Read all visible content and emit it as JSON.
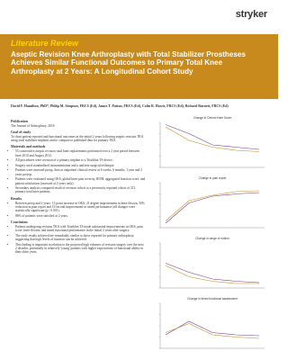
{
  "brand": "stryker",
  "header": {
    "kicker": "Literature Review",
    "title": "Aseptic Revision Knee Arthroplasty with Total Stabilizer Prostheses Achieves Similar Functional Outcomes to Primary Total Knee Arthroplasty at 2 Years: A Longitudinal Cohort Study"
  },
  "authors": "David F. Hamilton, PhD*, Philip M. Simpson, FRCS (Ed), James T. Patton, FRCS (Ed), Colin R. Howie, FRCS (Ed), Richard Burnett, FRCS (Ed)",
  "sections": [
    {
      "heading": "Publication",
      "text": "The Journal of Arthroplasty, 2016"
    },
    {
      "heading": "Goal of study",
      "text": "To chart patient reported and functional outcomes in the initial 2 years following aseptic revision TKA using total stabilizer implants and to compare to published data for primary TKA."
    },
    {
      "heading": "Materials and methods",
      "bullets": [
        "53 consecutive aseptic revision total knee replacements performed over a 2 year period between June 2010 and August 2012.",
        "All procedures were revision of a primary implant to a Triathlon TS device.",
        "Surgery used standardized instrumentation and a uniform surgical technique.",
        "Patients were assessed preop, then at outpatient clinical review at 6 weeks, 6 months, 1 year and 2 years postop.",
        "Patients were evaluated using OKS, global knee pain severity, ROM, aggregated function score, and patient satisfaction (assessed at 2 years only).",
        "Secondary analysis compared result of revision cohort to a previously reported cohort of 212 primary total knee patients."
      ]
    },
    {
      "heading": "Results",
      "bullets": [
        "Between preop and 2 years: 15 point increase in OKS, 21 degree improvement in knee flexion, 50% reduction in pain report and 16 second improvement in timed performance (all changes were statistically significant (p< 0.001).",
        "86% of patients were satisfied at 2 years."
      ]
    },
    {
      "heading": "Conclusion",
      "bullets": [
        "Patients undergoing revision TKA with Triathlon TS made substantial improvements in OKS, pain score, knee flexion, and timed functional performance in the initial 2 years after surgery.",
        "The early results achieved are remarkably similar to those reported for primary arthroplasty, suggesting that high levels of function can be achieved.",
        "This finding is important in relation to the projected high volumes of revision surgery over the next 2 decades, potentially in relatively 'young' patients with higher expectations of functional ability in their older years."
      ]
    }
  ],
  "figures": [
    {
      "title": "Change in Oxford Knee Score"
    },
    {
      "title": "Change in pain report"
    },
    {
      "title": "Change in range of motion"
    },
    {
      "title": "Change in timed functional assessment"
    }
  ]
}
